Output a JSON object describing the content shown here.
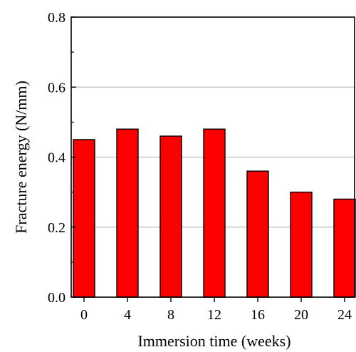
{
  "chart_data": {
    "type": "bar",
    "categories": [
      "0",
      "4",
      "8",
      "12",
      "16",
      "20",
      "24"
    ],
    "values": [
      0.45,
      0.48,
      0.46,
      0.48,
      0.36,
      0.3,
      0.28
    ],
    "xlabel": "Immersion time (weeks)",
    "ylabel": "Fracture energy (N/mm)",
    "ylim": [
      0.0,
      0.8
    ],
    "yticks": [
      "0.0",
      "0.2",
      "0.4",
      "0.6",
      "0.8"
    ],
    "grid": true,
    "bar_color": "#ff0000",
    "bar_edge_color": "#000000",
    "grid_color": "#bfbfbf"
  }
}
